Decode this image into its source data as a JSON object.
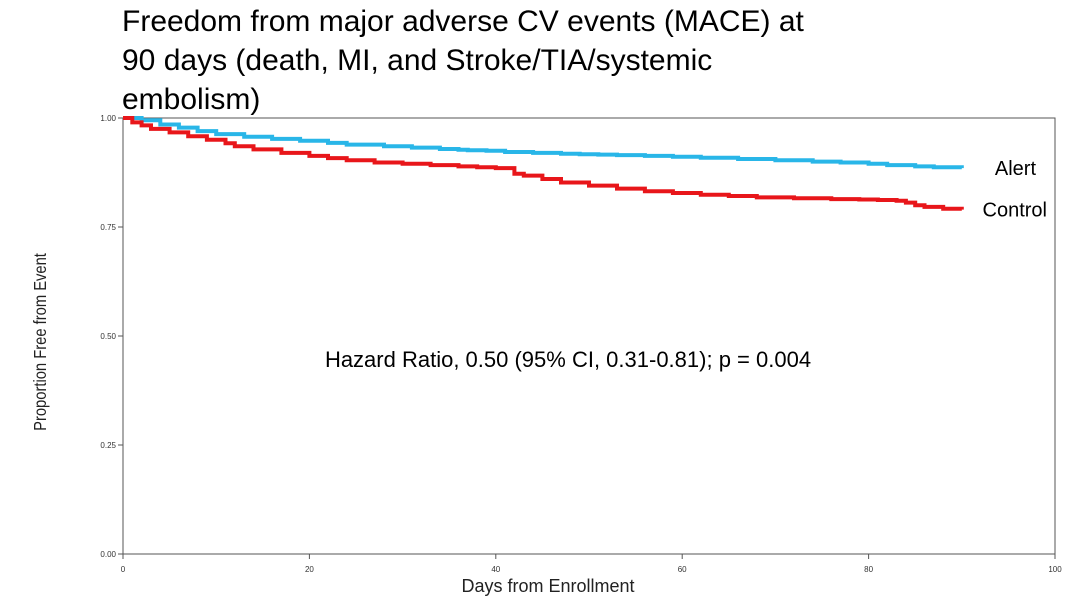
{
  "chart_data": {
    "type": "line",
    "title_lines": [
      "Freedom from major adverse CV events (MACE) at",
      "90 days (death, MI, and Stroke/TIA/systemic",
      "embolism)"
    ],
    "xlabel": "Days from Enrollment",
    "ylabel": "Proportion Free from Event",
    "xlim": [
      0,
      100
    ],
    "ylim": [
      0,
      1
    ],
    "x_ticks": [
      0,
      20,
      40,
      60,
      80,
      100
    ],
    "x_tick_labels": [
      "0",
      "20",
      "40",
      "60",
      "80",
      "100"
    ],
    "y_ticks": [
      0,
      0.25,
      0.5,
      0.75,
      1.0
    ],
    "y_tick_labels": [
      "0.00",
      "0.25",
      "0.50",
      "0.75",
      "1.00"
    ],
    "grid": false,
    "annotation": "Hazard Ratio, 0.50 (95% CI, 0.31-0.81); p = 0.004",
    "series": [
      {
        "name": "Alert",
        "color": "#29b6e8",
        "x": [
          0,
          2,
          4,
          6,
          8,
          10,
          13,
          16,
          19,
          22,
          24,
          28,
          31,
          34,
          36,
          37,
          39,
          41,
          44,
          47,
          49,
          51,
          53,
          56,
          59,
          62,
          66,
          70,
          74,
          77,
          80,
          82,
          85,
          87,
          90
        ],
        "y": [
          1.0,
          0.995,
          0.985,
          0.978,
          0.97,
          0.963,
          0.957,
          0.952,
          0.948,
          0.943,
          0.939,
          0.935,
          0.932,
          0.929,
          0.927,
          0.926,
          0.925,
          0.922,
          0.92,
          0.918,
          0.917,
          0.916,
          0.915,
          0.913,
          0.911,
          0.909,
          0.906,
          0.903,
          0.9,
          0.898,
          0.895,
          0.892,
          0.889,
          0.887,
          0.885
        ]
      },
      {
        "name": "Control",
        "color": "#e8161a",
        "x": [
          0,
          1,
          2,
          3,
          5,
          7,
          9,
          11,
          12,
          14,
          17,
          20,
          22,
          24,
          27,
          30,
          33,
          36,
          38,
          40,
          42,
          43,
          45,
          47,
          50,
          53,
          56,
          59,
          62,
          65,
          68,
          72,
          76,
          79,
          81,
          83,
          84,
          85,
          86,
          88,
          90
        ],
        "y": [
          1.0,
          0.99,
          0.983,
          0.975,
          0.967,
          0.958,
          0.95,
          0.942,
          0.935,
          0.928,
          0.92,
          0.913,
          0.908,
          0.903,
          0.898,
          0.895,
          0.892,
          0.889,
          0.887,
          0.885,
          0.872,
          0.868,
          0.86,
          0.852,
          0.845,
          0.838,
          0.832,
          0.828,
          0.824,
          0.821,
          0.818,
          0.816,
          0.814,
          0.813,
          0.812,
          0.81,
          0.806,
          0.8,
          0.796,
          0.792,
          0.79
        ]
      }
    ]
  },
  "colors": {
    "axis": "#555555",
    "text": "#000000"
  }
}
